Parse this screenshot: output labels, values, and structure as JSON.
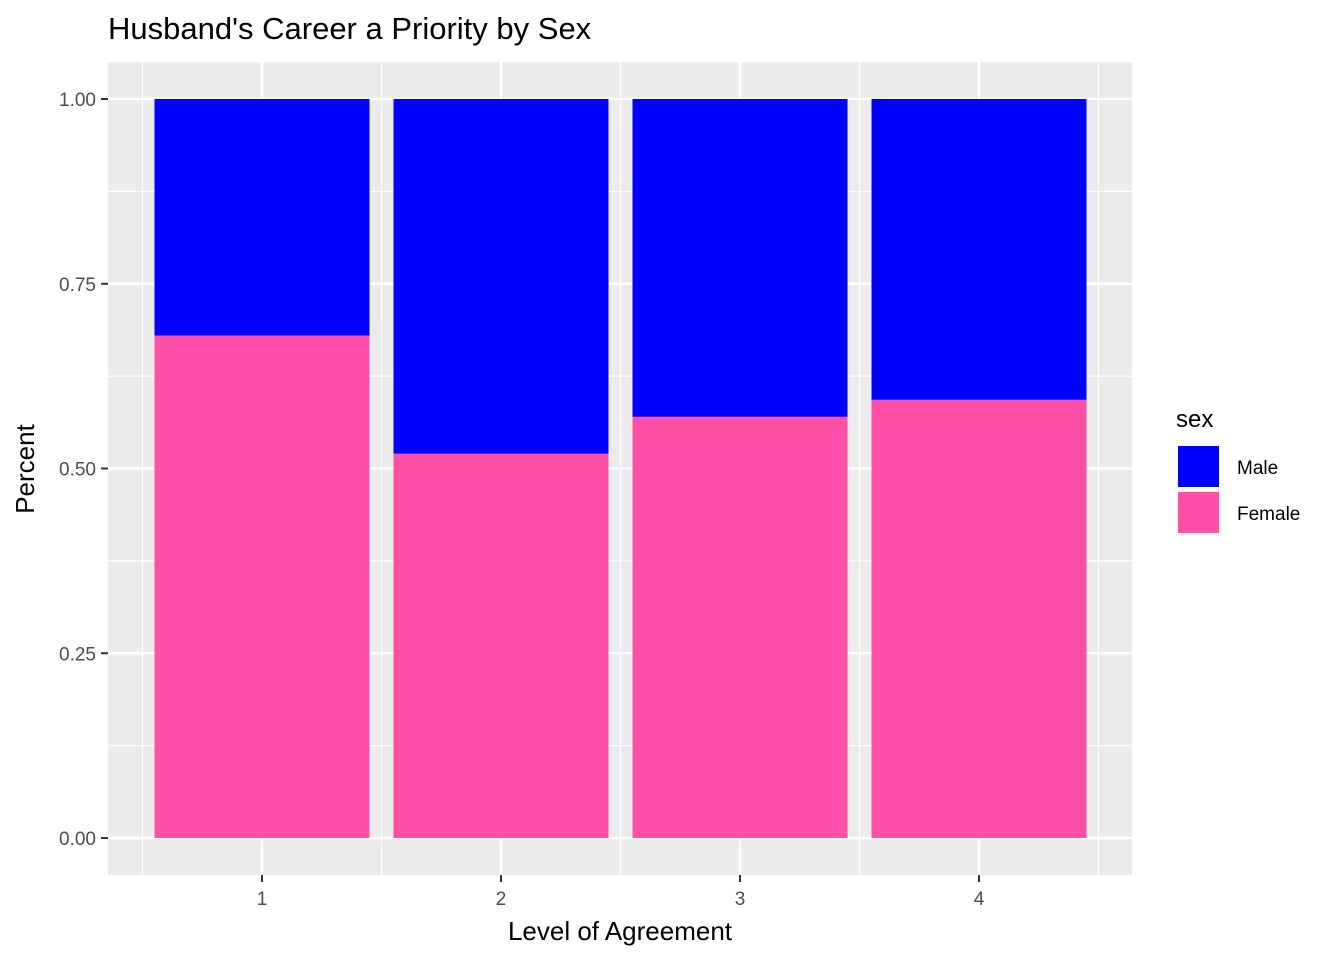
{
  "chart_data": {
    "type": "bar",
    "stacked": true,
    "title": "Husband's Career a Priority by Sex",
    "xlabel": "Level of Agreement",
    "ylabel": "Percent",
    "categories": [
      "1",
      "2",
      "3",
      "4"
    ],
    "ylim": [
      0,
      1
    ],
    "yticks": [
      "0.00",
      "0.25",
      "0.50",
      "0.75",
      "1.00"
    ],
    "grid": true,
    "legend": {
      "title": "sex",
      "position": "right"
    },
    "series": [
      {
        "name": "Female",
        "color": "#FF4FA7",
        "values": [
          0.68,
          0.52,
          0.57,
          0.593
        ]
      },
      {
        "name": "Male",
        "color": "#0000FF",
        "values": [
          0.32,
          0.48,
          0.43,
          0.407
        ]
      }
    ],
    "legend_order": [
      "Male",
      "Female"
    ]
  }
}
